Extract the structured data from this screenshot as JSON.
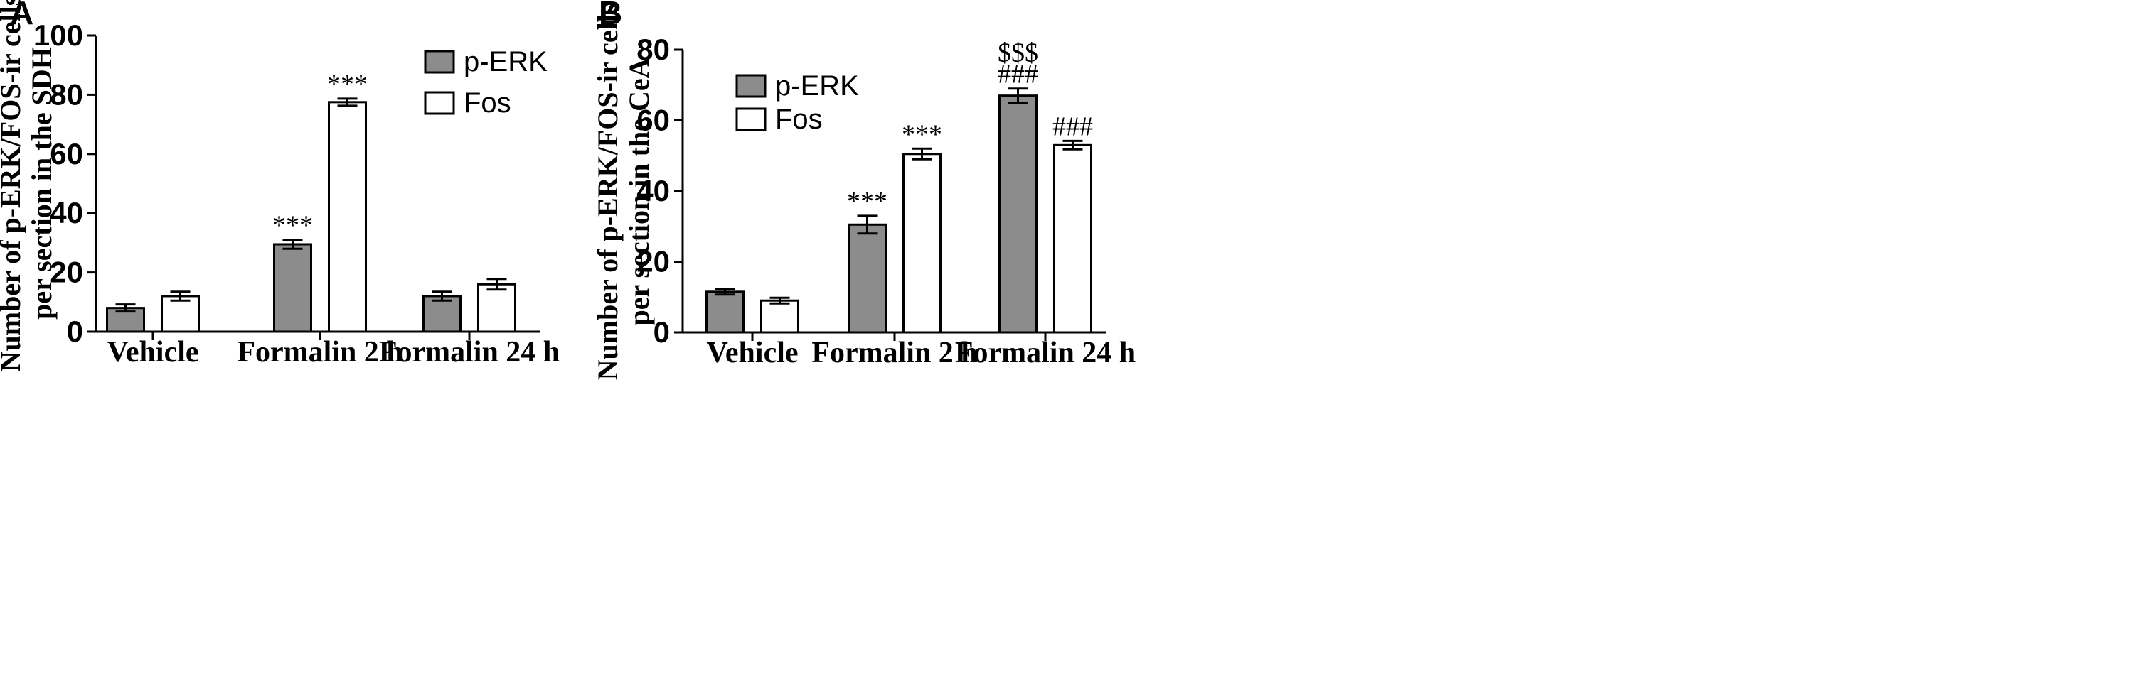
{
  "chart_data": [
    {
      "type": "bar",
      "panel": "A",
      "ylabel_lines": [
        "Number of p-ERK/FOS-ir cells",
        "per section in the SDH"
      ],
      "ylim": [
        0,
        100
      ],
      "yticks": [
        0,
        20,
        40,
        60,
        80,
        100
      ],
      "categories": [
        "Vehicle",
        "Formalin 2 h",
        "Formalin 24 h"
      ],
      "legend_position": "top-right",
      "grid": false,
      "series": [
        {
          "name": "p-ERK",
          "color": "#8c8c8c",
          "values": [
            8,
            29.5,
            12
          ],
          "errors": [
            1.2,
            1.5,
            1.5
          ]
        },
        {
          "name": "Fos",
          "color": "#ffffff",
          "values": [
            12,
            77.5,
            16
          ],
          "errors": [
            1.5,
            1.2,
            1.8
          ]
        }
      ],
      "annotations": [
        {
          "series": 0,
          "category": 1,
          "lines": [
            "***"
          ]
        },
        {
          "series": 1,
          "category": 1,
          "lines": [
            "***"
          ]
        }
      ]
    },
    {
      "type": "bar",
      "panel": "B",
      "ylabel_lines": [
        "Number of p-ERK/FOS-ir cells",
        "per section in the CeA"
      ],
      "ylim": [
        0,
        80
      ],
      "yticks": [
        0,
        20,
        40,
        60,
        80
      ],
      "categories": [
        "Vehicle",
        "Formalin 2 h",
        "Formalin 24 h"
      ],
      "legend_position": "top-left",
      "grid": false,
      "series": [
        {
          "name": "p-ERK",
          "color": "#8c8c8c",
          "values": [
            11.5,
            30.5,
            67
          ],
          "errors": [
            0.8,
            2.5,
            2
          ]
        },
        {
          "name": "Fos",
          "color": "#ffffff",
          "values": [
            9,
            50.5,
            53
          ],
          "errors": [
            0.8,
            1.5,
            1.2
          ]
        }
      ],
      "annotations": [
        {
          "series": 0,
          "category": 1,
          "lines": [
            "***"
          ]
        },
        {
          "series": 1,
          "category": 1,
          "lines": [
            "***"
          ]
        },
        {
          "series": 0,
          "category": 2,
          "lines": [
            "$$$",
            "###"
          ]
        },
        {
          "series": 1,
          "category": 2,
          "lines": [
            "###"
          ]
        }
      ]
    }
  ]
}
